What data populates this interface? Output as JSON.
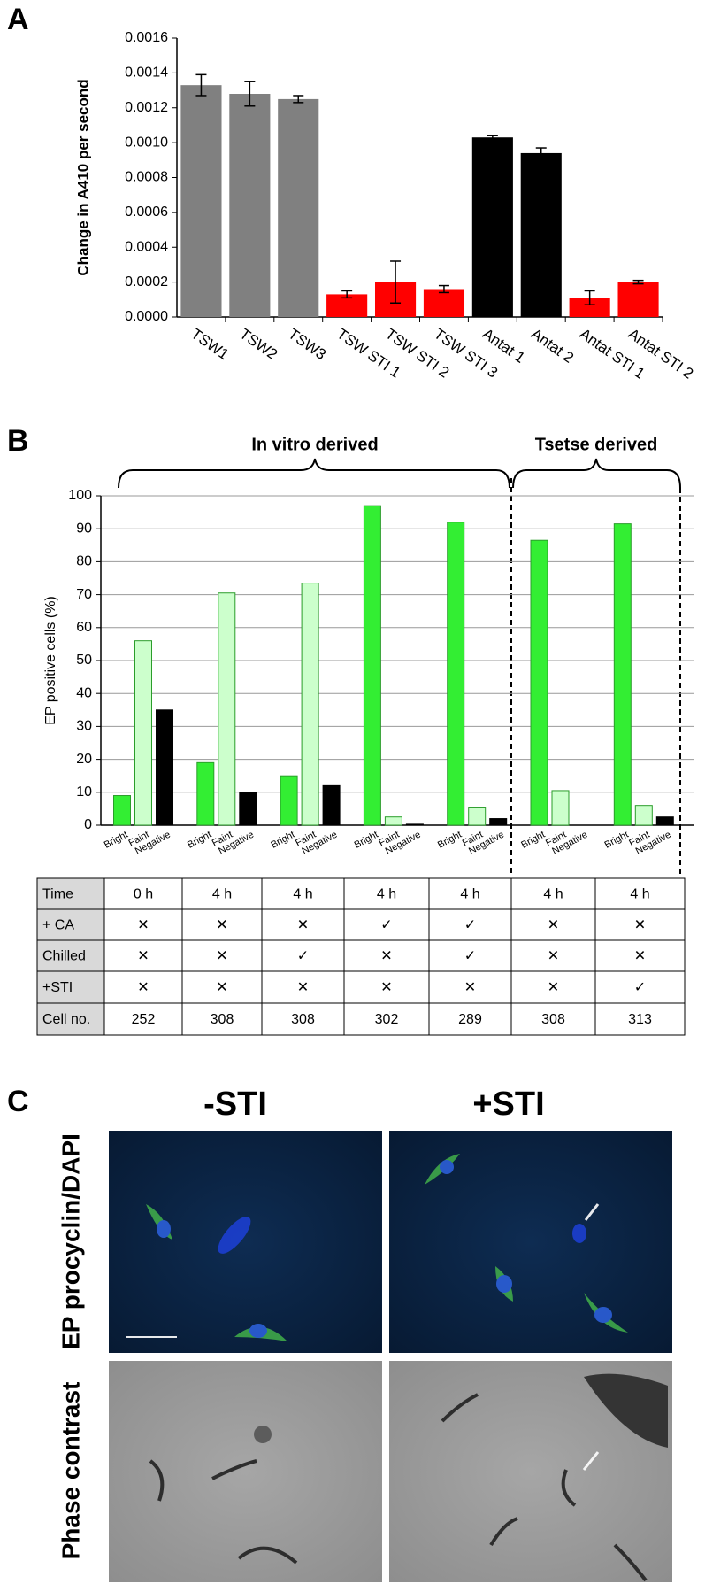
{
  "panel_labels": [
    "A",
    "B",
    "C"
  ],
  "chart_data": [
    {
      "type": "bar",
      "ylabel": "Change in A410 per second",
      "categories": [
        "TSW1",
        "TSW2",
        "TSW3",
        "TSW STI 1",
        "TSW STI 2",
        "TSW STI 3",
        "Antat 1",
        "Antat 2",
        "Antat STI  1",
        "Antat STI 2"
      ],
      "values": [
        0.00133,
        0.00128,
        0.00125,
        0.00013,
        0.0002,
        0.00016,
        0.00103,
        0.00094,
        0.00011,
        0.0002
      ],
      "errors": [
        6e-05,
        7e-05,
        2e-05,
        2e-05,
        0.00012,
        2e-05,
        1e-05,
        3e-05,
        4e-05,
        1e-05
      ],
      "colors": [
        "#808080",
        "#808080",
        "#808080",
        "#ff0000",
        "#ff0000",
        "#ff0000",
        "#000000",
        "#000000",
        "#ff0000",
        "#ff0000"
      ],
      "ylim": [
        0,
        0.0016
      ],
      "yticks": [
        {
          "value": 0,
          "label": "0.0000"
        },
        {
          "value": 0.0002,
          "label": "0.0002"
        },
        {
          "value": 0.0004,
          "label": "0.0004"
        },
        {
          "value": 0.0006,
          "label": "0.0006"
        },
        {
          "value": 0.0008,
          "label": "0.0008"
        },
        {
          "value": 0.001,
          "label": "0.0010"
        },
        {
          "value": 0.0012,
          "label": "0.0012"
        },
        {
          "value": 0.0014,
          "label": "0.0014"
        },
        {
          "value": 0.0016,
          "label": "0.0016"
        }
      ]
    },
    {
      "type": "grouped_bar",
      "ylabel": "EP positive cells (%)",
      "annotations": [
        "In vitro derived",
        "Tsetse derived"
      ],
      "series": [
        {
          "name": "Bright",
          "color": "#33ee33",
          "values": [
            9,
            19,
            15,
            97,
            92,
            86.5,
            91.5
          ]
        },
        {
          "name": "Faint",
          "color": "#ccffcc",
          "values": [
            56,
            70.5,
            73.5,
            2.5,
            5.5,
            10.5,
            6
          ]
        },
        {
          "name": "Negative",
          "color": "#000000",
          "values": [
            35,
            10,
            12,
            0.3,
            2,
            0,
            2.5
          ]
        }
      ],
      "ylim": [
        0,
        100
      ],
      "yticks": [
        0,
        10,
        20,
        30,
        40,
        50,
        60,
        70,
        80,
        90,
        100
      ],
      "grid": true
    }
  ],
  "table": {
    "rows": [
      [
        "Time",
        "0 h",
        "4 h",
        "4 h",
        "4 h",
        "4 h",
        "4 h",
        "4 h"
      ],
      [
        "+ CA",
        "✕",
        "✕",
        "✕",
        "✓",
        "✓",
        "✕",
        "✕"
      ],
      [
        "Chilled",
        "✕",
        "✕",
        "✓",
        "✕",
        "✓",
        "✕",
        "✕"
      ],
      [
        "+STI",
        "✕",
        "✕",
        "✕",
        "✕",
        "✕",
        "✕",
        "✓"
      ],
      [
        "Cell no.",
        "252",
        "308",
        "308",
        "302",
        "289",
        "308",
        "313"
      ]
    ]
  },
  "images": {
    "columns": [
      "-STI",
      "+STI"
    ],
    "rows": [
      "EP procyclin/DAPI",
      "Phase contrast"
    ]
  }
}
